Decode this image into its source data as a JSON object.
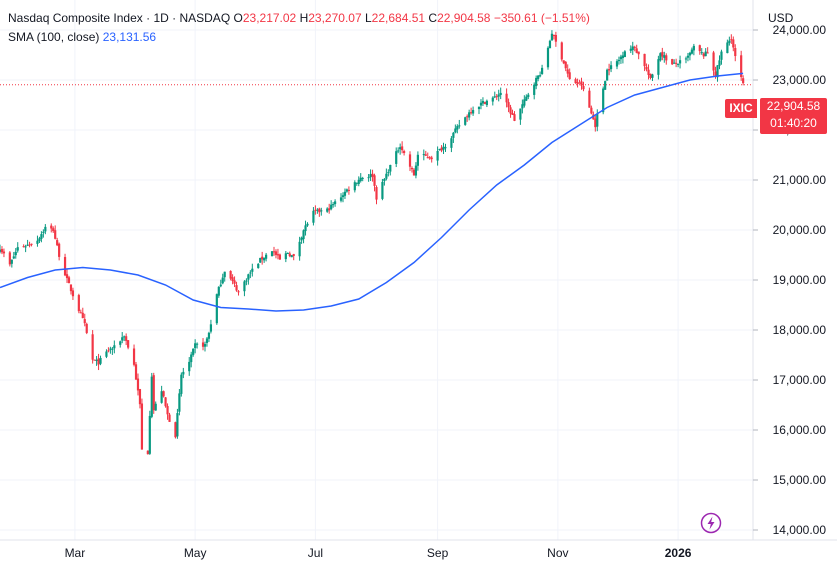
{
  "legend": {
    "name": "Nasdaq Composite Index",
    "sep1": "·",
    "interval": "1D",
    "sep2": "·",
    "exchange": "NASDAQ",
    "o_label": "O",
    "o_value": "23,217.02",
    "h_label": "H",
    "h_value": "23,270.07",
    "l_label": "L",
    "l_value": "22,684.51",
    "c_label": "C",
    "c_value": "22,904.58",
    "change": "−350.61 (−1.51%)",
    "sma_label": "SMA (100, close)",
    "sma_value": "23,131.56"
  },
  "currency": "USD",
  "price_tag": {
    "symbol": "IXIC",
    "price": "22,904.58",
    "countdown": "01:40:20"
  },
  "colors": {
    "up": "#089981",
    "down": "#f23645",
    "sma": "#2962ff",
    "grid": "#f0f3fa"
  },
  "icons": {
    "bolt": "lightning-bolt-icon"
  },
  "chart_data": {
    "type": "candlestick",
    "symbol": "IXIC",
    "ylim": [
      13800,
      24600
    ],
    "yticks": [
      "14,000.00",
      "15,000.00",
      "16,000.00",
      "17,000.00",
      "18,000.00",
      "19,000.00",
      "20,000.00",
      "21,000.00",
      "22,000.00",
      "23,000.00",
      "24,000.00"
    ],
    "ytick_values": [
      14000,
      15000,
      16000,
      17000,
      18000,
      19000,
      20000,
      21000,
      22000,
      23000,
      24000
    ],
    "xticks": [
      "Mar",
      "May",
      "Jul",
      "Sep",
      "Nov",
      "2026"
    ],
    "xtick_dates": [
      "2025-03-01",
      "2025-05-01",
      "2025-07-01",
      "2025-09-01",
      "2025-11-01",
      "2026-01-01"
    ],
    "xlim": [
      "2025-01-22",
      "2026-02-08"
    ],
    "last_close": 22904.58,
    "close_path": [
      [
        "2025-01-22",
        19650
      ],
      [
        "2025-01-27",
        19300
      ],
      [
        "2025-01-31",
        19650
      ],
      [
        "2025-02-05",
        19700
      ],
      [
        "2025-02-10",
        19800
      ],
      [
        "2025-02-14",
        20050
      ],
      [
        "2025-02-18",
        20000
      ],
      [
        "2025-02-21",
        19500
      ],
      [
        "2025-02-25",
        19000
      ],
      [
        "2025-03-03",
        18400
      ],
      [
        "2025-03-06",
        18100
      ],
      [
        "2025-03-10",
        17400
      ],
      [
        "2025-03-13",
        17350
      ],
      [
        "2025-03-18",
        17600
      ],
      [
        "2025-03-21",
        17650
      ],
      [
        "2025-03-26",
        17900
      ],
      [
        "2025-03-31",
        17300
      ],
      [
        "2025-04-03",
        16500
      ],
      [
        "2025-04-04",
        15600
      ],
      [
        "2025-04-07",
        15550
      ],
      [
        "2025-04-09",
        17100
      ],
      [
        "2025-04-10",
        16400
      ],
      [
        "2025-04-14",
        16800
      ],
      [
        "2025-04-17",
        16300
      ],
      [
        "2025-04-21",
        15900
      ],
      [
        "2025-04-24",
        17100
      ],
      [
        "2025-04-28",
        17350
      ],
      [
        "2025-05-01",
        17700
      ],
      [
        "2025-05-06",
        17700
      ],
      [
        "2025-05-08",
        17950
      ],
      [
        "2025-05-12",
        18700
      ],
      [
        "2025-05-16",
        19200
      ],
      [
        "2025-05-21",
        18900
      ],
      [
        "2025-05-23",
        18750
      ],
      [
        "2025-05-28",
        19100
      ],
      [
        "2025-06-03",
        19400
      ],
      [
        "2025-06-09",
        19600
      ],
      [
        "2025-06-13",
        19400
      ],
      [
        "2025-06-17",
        19550
      ],
      [
        "2025-06-20",
        19450
      ],
      [
        "2025-06-25",
        20000
      ],
      [
        "2025-06-30",
        20350
      ],
      [
        "2025-07-07",
        20400
      ],
      [
        "2025-07-11",
        20550
      ],
      [
        "2025-07-17",
        20800
      ],
      [
        "2025-07-24",
        21050
      ],
      [
        "2025-07-30",
        21100
      ],
      [
        "2025-08-01",
        20650
      ],
      [
        "2025-08-07",
        21200
      ],
      [
        "2025-08-13",
        21700
      ],
      [
        "2025-08-20",
        21100
      ],
      [
        "2025-08-22",
        21500
      ],
      [
        "2025-08-29",
        21450
      ],
      [
        "2025-09-05",
        21700
      ],
      [
        "2025-09-12",
        22100
      ],
      [
        "2025-09-18",
        22400
      ],
      [
        "2025-09-24",
        22550
      ],
      [
        "2025-09-30",
        22650
      ],
      [
        "2025-10-03",
        22750
      ],
      [
        "2025-10-10",
        22200
      ],
      [
        "2025-10-14",
        22500
      ],
      [
        "2025-10-20",
        22950
      ],
      [
        "2025-10-24",
        23200
      ],
      [
        "2025-10-29",
        23950
      ],
      [
        "2025-11-04",
        23350
      ],
      [
        "2025-11-07",
        23000
      ],
      [
        "2025-11-13",
        22900
      ],
      [
        "2025-11-20",
        22100
      ],
      [
        "2025-11-21",
        22300
      ],
      [
        "2025-11-26",
        23200
      ],
      [
        "2025-12-02",
        23400
      ],
      [
        "2025-12-05",
        23600
      ],
      [
        "2025-12-10",
        23650
      ],
      [
        "2025-12-15",
        23300
      ],
      [
        "2025-12-18",
        23000
      ],
      [
        "2025-12-23",
        23550
      ],
      [
        "2025-12-29",
        23300
      ],
      [
        "2026-01-05",
        23400
      ],
      [
        "2026-01-09",
        23650
      ],
      [
        "2026-01-14",
        23500
      ],
      [
        "2026-01-16",
        23550
      ],
      [
        "2026-01-20",
        23100
      ],
      [
        "2026-01-23",
        23550
      ],
      [
        "2026-01-28",
        23850
      ],
      [
        "2026-01-30",
        23450
      ],
      [
        "2026-02-03",
        22904.58
      ]
    ],
    "sma_path": [
      [
        "2025-01-22",
        18850
      ],
      [
        "2025-02-05",
        19050
      ],
      [
        "2025-02-19",
        19200
      ],
      [
        "2025-03-05",
        19250
      ],
      [
        "2025-03-19",
        19200
      ],
      [
        "2025-04-02",
        19100
      ],
      [
        "2025-04-16",
        18900
      ],
      [
        "2025-04-30",
        18600
      ],
      [
        "2025-05-14",
        18450
      ],
      [
        "2025-05-28",
        18420
      ],
      [
        "2025-06-11",
        18380
      ],
      [
        "2025-06-25",
        18400
      ],
      [
        "2025-07-09",
        18480
      ],
      [
        "2025-07-23",
        18620
      ],
      [
        "2025-08-06",
        18950
      ],
      [
        "2025-08-20",
        19350
      ],
      [
        "2025-09-03",
        19850
      ],
      [
        "2025-09-17",
        20400
      ],
      [
        "2025-10-01",
        20900
      ],
      [
        "2025-10-15",
        21300
      ],
      [
        "2025-10-29",
        21750
      ],
      [
        "2025-11-12",
        22100
      ],
      [
        "2025-11-26",
        22450
      ],
      [
        "2025-12-10",
        22700
      ],
      [
        "2025-12-24",
        22850
      ],
      [
        "2026-01-07",
        23000
      ],
      [
        "2026-01-21",
        23080
      ],
      [
        "2026-02-03",
        23131.56
      ]
    ]
  }
}
